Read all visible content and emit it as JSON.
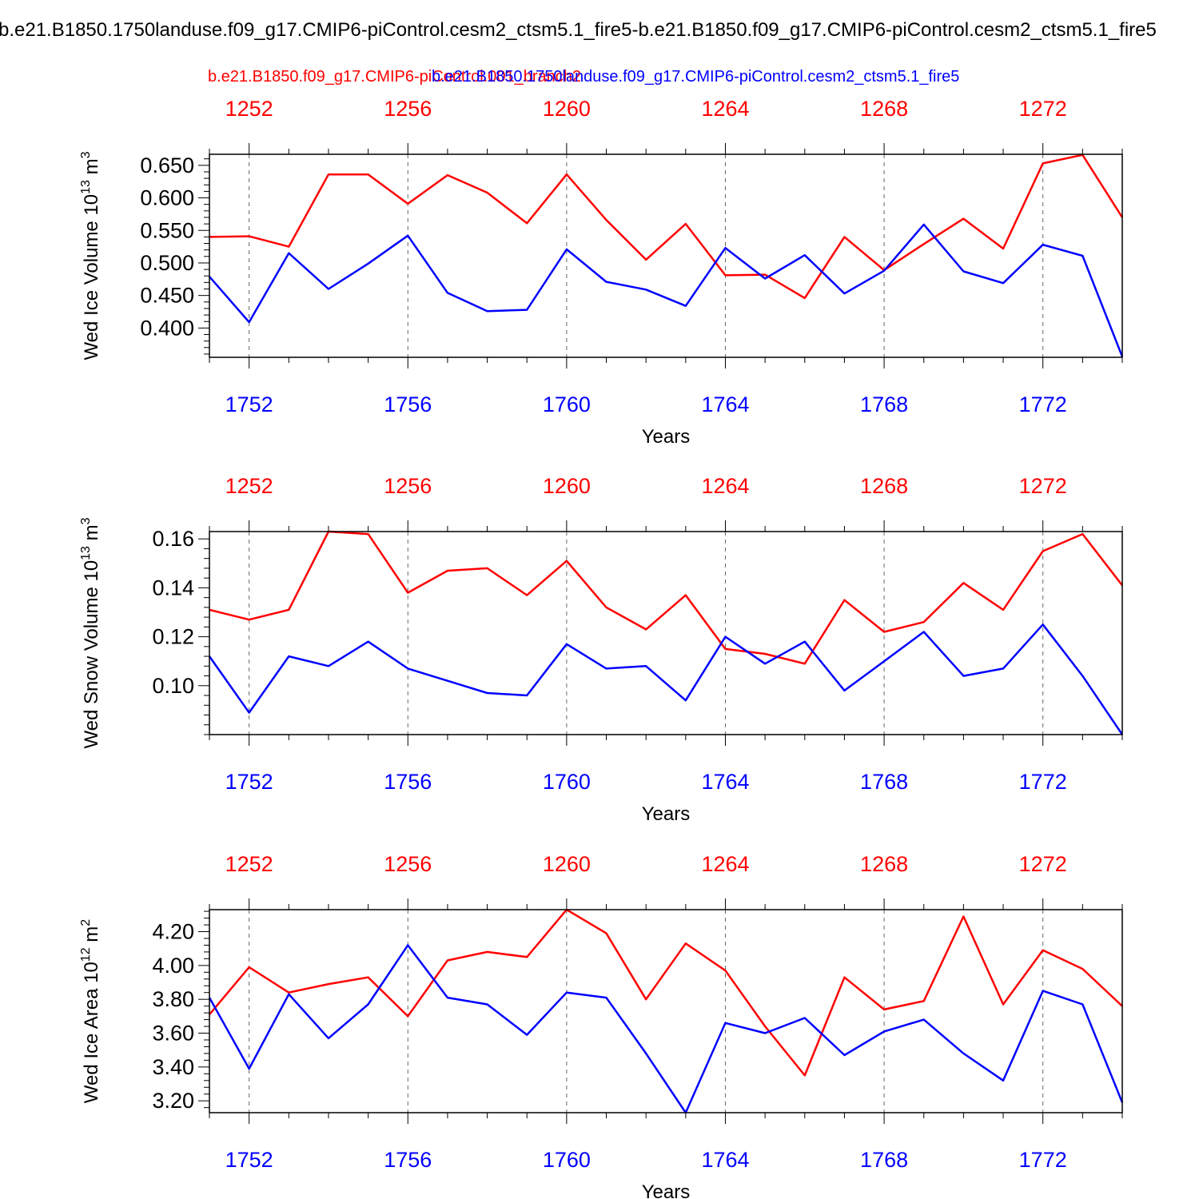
{
  "title": "b.e21.B1850.1750landuse.f09_g17.CMIP6-piControl.cesm2_ctsm5.1_fire5-b.e21.B1850.f09_g17.CMIP6-piControl.cesm2_ctsm5.1_fire5",
  "legend": {
    "red_label": "b.e21.B1850.f09_g17.CMIP6-piControl.001_branch2",
    "blue_label": "b.e21.B1850.1750landuse.f09_g17.CMIP6-piControl.cesm2_ctsm5.1_fire5"
  },
  "colors": {
    "red": "#ff0000",
    "blue": "#0000ff",
    "frame": "#000000"
  },
  "chart_data": [
    {
      "type": "line",
      "ylabel_main": "Wed Ice Volume 10",
      "ylabel_exp": "13",
      "ylabel_unit": " m",
      "ylabel_unit_exp": "3",
      "xlabel": "Years",
      "ylim": [
        0.355,
        0.667
      ],
      "y_ticks": [
        "0.400",
        "0.450",
        "0.500",
        "0.550",
        "0.600",
        "0.650"
      ],
      "x_bottom_ticks": [
        "1752",
        "1756",
        "1760",
        "1764",
        "1768",
        "1772"
      ],
      "x_top_ticks": [
        "1252",
        "1256",
        "1260",
        "1264",
        "1268",
        "1272"
      ],
      "x_blue": [
        1751,
        1752,
        1753,
        1754,
        1755,
        1756,
        1757,
        1758,
        1759,
        1760,
        1761,
        1762,
        1763,
        1764,
        1765,
        1766,
        1767,
        1768,
        1769,
        1770,
        1771,
        1772,
        1773,
        1774
      ],
      "series": [
        {
          "color": "red",
          "values": [
            0.54,
            0.541,
            0.525,
            0.636,
            0.636,
            0.591,
            0.635,
            0.608,
            0.561,
            0.636,
            0.566,
            0.505,
            0.56,
            0.481,
            0.482,
            0.446,
            0.54,
            0.489,
            0.529,
            0.568,
            0.522,
            0.653,
            0.666,
            0.57
          ]
        },
        {
          "color": "blue",
          "values": [
            0.479,
            0.409,
            0.515,
            0.46,
            0.499,
            0.542,
            0.454,
            0.426,
            0.428,
            0.521,
            0.471,
            0.459,
            0.434,
            0.523,
            0.476,
            0.512,
            0.453,
            0.488,
            0.559,
            0.487,
            0.469,
            0.528,
            0.511,
            0.356
          ]
        }
      ]
    },
    {
      "type": "line",
      "ylabel_main": "Wed Snow Volume 10",
      "ylabel_exp": "13",
      "ylabel_unit": " m",
      "ylabel_unit_exp": "3",
      "xlabel": "Years",
      "ylim": [
        0.08,
        0.163
      ],
      "y_ticks": [
        "0.10",
        "0.12",
        "0.14",
        "0.16"
      ],
      "x_bottom_ticks": [
        "1752",
        "1756",
        "1760",
        "1764",
        "1768",
        "1772"
      ],
      "x_top_ticks": [
        "1252",
        "1256",
        "1260",
        "1264",
        "1268",
        "1272"
      ],
      "x_blue": [
        1751,
        1752,
        1753,
        1754,
        1755,
        1756,
        1757,
        1758,
        1759,
        1760,
        1761,
        1762,
        1763,
        1764,
        1765,
        1766,
        1767,
        1768,
        1769,
        1770,
        1771,
        1772,
        1773,
        1774
      ],
      "series": [
        {
          "color": "red",
          "values": [
            0.131,
            0.127,
            0.131,
            0.163,
            0.162,
            0.138,
            0.147,
            0.148,
            0.137,
            0.151,
            0.132,
            0.123,
            0.137,
            0.115,
            0.113,
            0.109,
            0.135,
            0.122,
            0.126,
            0.142,
            0.131,
            0.155,
            0.162,
            0.141
          ]
        },
        {
          "color": "blue",
          "values": [
            0.112,
            0.089,
            0.112,
            0.108,
            0.118,
            0.107,
            0.102,
            0.097,
            0.096,
            0.117,
            0.107,
            0.108,
            0.094,
            0.12,
            0.109,
            0.118,
            0.098,
            0.11,
            0.122,
            0.104,
            0.107,
            0.125,
            0.104,
            0.08
          ]
        }
      ]
    },
    {
      "type": "line",
      "ylabel_main": "Wed Ice Area 10",
      "ylabel_exp": "12",
      "ylabel_unit": " m",
      "ylabel_unit_exp": "2",
      "xlabel": "Years",
      "ylim": [
        3.13,
        4.33
      ],
      "y_ticks": [
        "3.20",
        "3.40",
        "3.60",
        "3.80",
        "4.00",
        "4.20"
      ],
      "x_bottom_ticks": [
        "1752",
        "1756",
        "1760",
        "1764",
        "1768",
        "1772"
      ],
      "x_top_ticks": [
        "1252",
        "1256",
        "1260",
        "1264",
        "1268",
        "1272"
      ],
      "x_blue": [
        1751,
        1752,
        1753,
        1754,
        1755,
        1756,
        1757,
        1758,
        1759,
        1760,
        1761,
        1762,
        1763,
        1764,
        1765,
        1766,
        1767,
        1768,
        1769,
        1770,
        1771,
        1772,
        1773,
        1774
      ],
      "series": [
        {
          "color": "red",
          "values": [
            3.71,
            3.99,
            3.84,
            3.89,
            3.93,
            3.7,
            4.03,
            4.08,
            4.05,
            4.33,
            4.19,
            3.8,
            4.13,
            3.97,
            3.64,
            3.35,
            3.93,
            3.74,
            3.79,
            4.29,
            3.77,
            4.09,
            3.98,
            3.76
          ]
        },
        {
          "color": "blue",
          "values": [
            3.81,
            3.39,
            3.83,
            3.57,
            3.77,
            4.12,
            3.81,
            3.77,
            3.59,
            3.84,
            3.81,
            3.48,
            3.13,
            3.66,
            3.6,
            3.69,
            3.47,
            3.61,
            3.68,
            3.48,
            3.32,
            3.85,
            3.77,
            3.19
          ]
        }
      ]
    }
  ]
}
